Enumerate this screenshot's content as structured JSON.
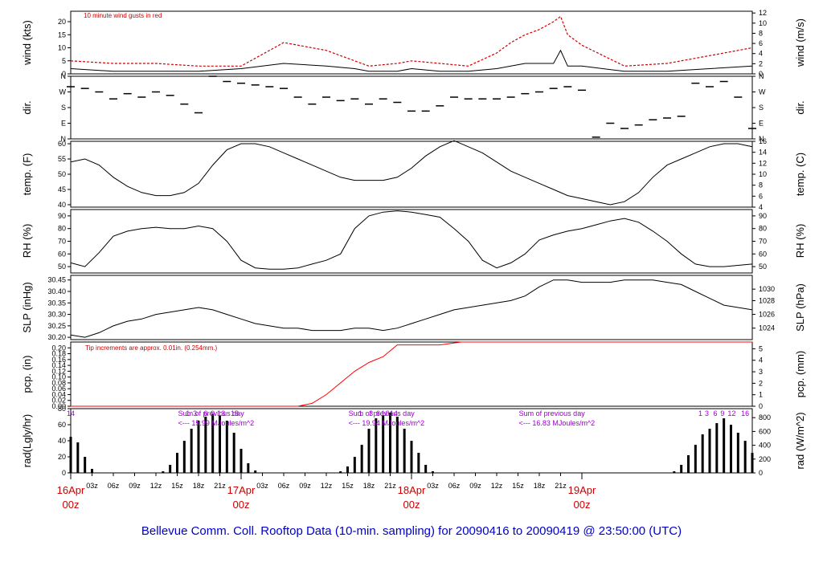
{
  "footer_title": "Bellevue Comm. Coll. Rooftop Data (10-min. sampling) for 20090416  to  20090419 @ 23:50:00  (UTC)",
  "colors": {
    "axis": "#000000",
    "gust": "#cc0000",
    "precip": "#ff0000",
    "note_red": "#cc0000",
    "note_purple": "#9900cc",
    "title_blue": "#0000cc",
    "date_red": "#cc0000"
  },
  "chart_data": [
    {
      "type": "line",
      "panel": "wind",
      "ylabel_left": "wind (kts)",
      "ylabel_right": "wind (m/s)",
      "annotation": "10  minute wind gusts in red",
      "ylim": [
        0,
        24
      ],
      "yticks_left": [
        0,
        5,
        10,
        15,
        20
      ],
      "yticks_right": [
        "0",
        "2",
        "4",
        "6",
        "8",
        "10",
        "12"
      ],
      "yticks_right_values": [
        0,
        3.89,
        7.78,
        11.66,
        15.55,
        19.44,
        23.33
      ],
      "x_hours": [
        0,
        6,
        12,
        18,
        24,
        30,
        36,
        40,
        42,
        46,
        48,
        52,
        56,
        60,
        62,
        64,
        66,
        68,
        69,
        70,
        72,
        78,
        84,
        90,
        96
      ],
      "series": [
        {
          "role": "speed",
          "values": [
            2,
            1,
            1,
            1,
            2,
            4,
            3,
            2,
            1,
            1,
            2,
            1,
            1,
            2,
            3,
            4,
            4,
            4,
            9,
            3,
            3,
            1,
            1,
            2,
            3
          ]
        },
        {
          "role": "gust",
          "values": [
            5,
            4,
            4,
            3,
            3,
            12,
            9,
            5,
            3,
            4,
            5,
            4,
            3,
            8,
            12,
            15,
            17,
            20,
            22,
            15,
            11,
            3,
            4,
            7,
            10
          ]
        }
      ]
    },
    {
      "type": "scatter",
      "panel": "dir",
      "ylabel_left": "dir.",
      "ylabel_right": "dir.",
      "yticks_left": [
        "N",
        "W",
        "S",
        "E",
        "N"
      ],
      "yticks_right": [
        "N",
        "W",
        "S",
        "E",
        "N"
      ],
      "yticks_values": [
        360,
        270,
        180,
        90,
        0
      ],
      "ylim": [
        0,
        360
      ],
      "x_hours": [
        0,
        2,
        4,
        6,
        8,
        10,
        12,
        14,
        16,
        18,
        20,
        22,
        24,
        26,
        28,
        30,
        32,
        34,
        36,
        38,
        40,
        42,
        44,
        46,
        48,
        50,
        52,
        54,
        56,
        58,
        60,
        62,
        64,
        66,
        68,
        70,
        72,
        74,
        76,
        78,
        80,
        82,
        84,
        86,
        88,
        90,
        92,
        94,
        96
      ],
      "values": [
        300,
        290,
        270,
        230,
        260,
        240,
        270,
        250,
        200,
        150,
        360,
        330,
        320,
        310,
        300,
        290,
        240,
        200,
        240,
        220,
        230,
        200,
        230,
        210,
        160,
        160,
        190,
        240,
        230,
        230,
        230,
        240,
        260,
        270,
        290,
        300,
        280,
        10,
        90,
        60,
        80,
        110,
        120,
        130,
        320,
        300,
        330,
        240,
        60
      ]
    },
    {
      "type": "line",
      "panel": "temp",
      "ylabel_left": "temp. (F)",
      "ylabel_right": "temp. (C)",
      "ylim": [
        39.2,
        60.8
      ],
      "yticks_left": [
        40,
        45,
        50,
        55,
        60
      ],
      "yticks_right": [
        "4",
        "6",
        "8",
        "10",
        "12",
        "14",
        "16"
      ],
      "yticks_right_values": [
        39.2,
        42.8,
        46.4,
        50.0,
        53.6,
        57.2,
        60.8
      ],
      "x_hours": [
        0,
        2,
        4,
        6,
        8,
        10,
        12,
        14,
        16,
        18,
        20,
        22,
        24,
        26,
        28,
        30,
        32,
        34,
        36,
        38,
        40,
        42,
        44,
        46,
        48,
        50,
        52,
        54,
        56,
        58,
        60,
        62,
        64,
        66,
        68,
        70,
        72,
        74,
        76,
        78,
        80,
        82,
        84,
        86,
        88,
        90,
        92,
        94,
        96
      ],
      "values": [
        54,
        55,
        53,
        49,
        46,
        44,
        43,
        43,
        44,
        47,
        53,
        58,
        60,
        60,
        59,
        57,
        55,
        53,
        51,
        49,
        48,
        48,
        48,
        49,
        52,
        56,
        59,
        61,
        59,
        57,
        54,
        51,
        49,
        47,
        45,
        43,
        42,
        41,
        40,
        41,
        44,
        49,
        53,
        55,
        57,
        59,
        60,
        60,
        59
      ]
    },
    {
      "type": "line",
      "panel": "rh",
      "ylabel_left": "RH (%)",
      "ylabel_right": "RH (%)",
      "ylim": [
        45,
        95
      ],
      "yticks_left": [
        50,
        60,
        70,
        80,
        90
      ],
      "yticks_right": [
        "50",
        "60",
        "70",
        "80",
        "90"
      ],
      "yticks_right_values": [
        50,
        60,
        70,
        80,
        90
      ],
      "x_hours": [
        0,
        2,
        4,
        6,
        8,
        10,
        12,
        14,
        16,
        18,
        20,
        22,
        24,
        26,
        28,
        30,
        32,
        34,
        36,
        38,
        40,
        42,
        44,
        46,
        48,
        50,
        52,
        54,
        56,
        58,
        60,
        62,
        64,
        66,
        68,
        70,
        72,
        74,
        76,
        78,
        80,
        82,
        84,
        86,
        88,
        90,
        92,
        94,
        96
      ],
      "values": [
        53,
        50,
        61,
        74,
        78,
        80,
        81,
        80,
        80,
        82,
        80,
        70,
        55,
        49,
        48,
        48,
        49,
        52,
        55,
        60,
        80,
        90,
        93,
        94,
        93,
        91,
        89,
        80,
        70,
        55,
        49,
        53,
        60,
        71,
        75,
        78,
        80,
        83,
        86,
        88,
        85,
        78,
        70,
        60,
        52,
        50,
        50,
        51,
        52
      ]
    },
    {
      "type": "line",
      "panel": "slp",
      "ylabel_left": "SLP (inHg)",
      "ylabel_right": "SLP (hPa)",
      "ylim": [
        30.19,
        30.47
      ],
      "yticks_left": [
        30.2,
        30.25,
        30.3,
        30.35,
        30.4,
        30.45
      ],
      "yticks_left_labels": [
        "30.20",
        "30.25",
        "30.30",
        "30.35",
        "30.40",
        "30.45"
      ],
      "yticks_right": [
        "1024",
        "1026",
        "1028",
        "1030"
      ],
      "yticks_right_values": [
        30.24,
        30.3,
        30.36,
        30.41
      ],
      "x_hours": [
        0,
        2,
        4,
        6,
        8,
        10,
        12,
        14,
        16,
        18,
        20,
        22,
        24,
        26,
        28,
        30,
        32,
        34,
        36,
        38,
        40,
        42,
        44,
        46,
        48,
        50,
        52,
        54,
        56,
        58,
        60,
        62,
        64,
        66,
        68,
        70,
        72,
        74,
        76,
        78,
        80,
        82,
        84,
        86,
        88,
        90,
        92,
        94,
        96
      ],
      "values": [
        30.21,
        30.2,
        30.22,
        30.25,
        30.27,
        30.28,
        30.3,
        30.31,
        30.32,
        30.33,
        30.32,
        30.3,
        30.28,
        30.26,
        30.25,
        30.24,
        30.24,
        30.23,
        30.23,
        30.23,
        30.24,
        30.24,
        30.23,
        30.24,
        30.26,
        30.28,
        30.3,
        30.32,
        30.33,
        30.34,
        30.35,
        30.36,
        30.38,
        30.42,
        30.45,
        30.45,
        30.44,
        30.44,
        30.44,
        30.45,
        30.45,
        30.45,
        30.44,
        30.43,
        30.4,
        30.37,
        30.34,
        30.33,
        30.32
      ]
    },
    {
      "type": "line",
      "panel": "precip",
      "ylabel_left": "pcp. (in)",
      "ylabel_right": "pcp. (mm)",
      "annotation": "Tip increments are approx. 0.01in. (0.254mm.)",
      "ylim": [
        0,
        0.22
      ],
      "yticks_left": [
        0,
        0.02,
        0.04,
        0.06,
        0.08,
        0.1,
        0.12,
        0.14,
        0.16,
        0.18,
        0.2
      ],
      "yticks_left_labels": [
        "0.00",
        "0.02",
        "0.04",
        "0.06",
        "0.08",
        "0.10",
        "0.12",
        "0.14",
        "0.16",
        "0.18",
        "0.20"
      ],
      "yticks_right": [
        "0",
        "1",
        "2",
        "3",
        "4",
        "5"
      ],
      "yticks_right_values": [
        0,
        0.0394,
        0.0787,
        0.1181,
        0.1575,
        0.1969
      ],
      "x_hours": [
        0,
        32,
        34,
        36,
        38,
        40,
        42,
        44,
        45,
        46,
        50,
        52,
        55,
        96
      ],
      "values": [
        0,
        0,
        0.01,
        0.04,
        0.08,
        0.12,
        0.15,
        0.17,
        0.19,
        0.21,
        0.21,
        0.21,
        0.22,
        0.22
      ]
    },
    {
      "type": "bar",
      "panel": "radiation",
      "ylabel_left": "rad(Lgly/hr)",
      "ylabel_right": "rad (W/m^2)",
      "ylim": [
        0,
        80
      ],
      "yticks_left": [
        0,
        20,
        40,
        60,
        80
      ],
      "yticks_right": [
        "0",
        "200",
        "400",
        "600",
        "800"
      ],
      "yticks_right_values": [
        0,
        17.2,
        34.4,
        51.6,
        68.8
      ],
      "x_hours": [
        0,
        1,
        2,
        3,
        13,
        14,
        15,
        16,
        17,
        18,
        19,
        20,
        21,
        22,
        23,
        24,
        25,
        26,
        38,
        39,
        40,
        41,
        42,
        43,
        44,
        45,
        46,
        47,
        48,
        49,
        50,
        51,
        62,
        63,
        64,
        65,
        66,
        67,
        68,
        69,
        70,
        71,
        72,
        73,
        74,
        75,
        76,
        77,
        78,
        79,
        80,
        81,
        82,
        83,
        84,
        85,
        86,
        87,
        88,
        89,
        90,
        91,
        92,
        93,
        94,
        95,
        96
      ],
      "values": [
        45,
        38,
        20,
        5,
        2,
        10,
        25,
        40,
        55,
        65,
        70,
        73,
        71,
        65,
        50,
        30,
        12,
        3,
        2,
        8,
        20,
        35,
        55,
        68,
        72,
        75,
        70,
        55,
        40,
        25,
        10,
        2,
        0,
        0,
        0,
        0,
        0,
        0,
        0,
        0,
        0,
        0,
        0,
        0,
        0,
        0,
        0,
        0,
        0,
        0,
        0,
        0,
        0,
        0,
        0,
        2,
        10,
        22,
        35,
        48,
        55,
        62,
        68,
        60,
        50,
        40,
        25
      ],
      "hour_marks": [
        {
          "label": "14",
          "x_hour": 0
        },
        {
          "label": "1",
          "x_hour": 16.5
        },
        {
          "label": "3",
          "x_hour": 17.5
        },
        {
          "label": "6",
          "x_hour": 19
        },
        {
          "label": "9",
          "x_hour": 20
        },
        {
          "label": "13",
          "x_hour": 21.2
        },
        {
          "label": "18",
          "x_hour": 23.1
        },
        {
          "label": "1",
          "x_hour": 40.8
        },
        {
          "label": "3",
          "x_hour": 42.3
        },
        {
          "label": "6",
          "x_hour": 43.3
        },
        {
          "label": "10",
          "x_hour": 44.3
        },
        {
          "label": "14",
          "x_hour": 45.5
        },
        {
          "label": "1",
          "x_hour": 88.7
        },
        {
          "label": "3",
          "x_hour": 89.6
        },
        {
          "label": "6",
          "x_hour": 90.8
        },
        {
          "label": "9",
          "x_hour": 91.8
        },
        {
          "label": "12",
          "x_hour": 93.1
        },
        {
          "label": "16",
          "x_hour": 95
        }
      ],
      "daily_sums": [
        {
          "line1": "Sum of previous day",
          "line2": "<--- 15.99 MJoules/m^2",
          "x_hour": 14
        },
        {
          "line1": "Sum of previous day",
          "line2": "<--- 19.94 MJoules/m^2",
          "x_hour": 38
        },
        {
          "line1": "Sum of previous day",
          "line2": "<--- 16.83 MJoules/m^2",
          "x_hour": 62
        }
      ]
    }
  ],
  "x_axis": {
    "tick_labels": [
      "03z",
      "06z",
      "09z",
      "12z",
      "15z",
      "18z",
      "21z",
      "03z",
      "06z",
      "09z",
      "12z",
      "15z",
      "18z",
      "21z",
      "03z",
      "06z",
      "09z",
      "12z",
      "15z",
      "18z",
      "21z"
    ],
    "tick_hours": [
      3,
      6,
      9,
      12,
      15,
      18,
      21,
      27,
      30,
      33,
      36,
      39,
      42,
      45,
      51,
      54,
      57,
      60,
      63,
      66,
      69
    ],
    "date_labels": [
      {
        "date": "16Apr",
        "hour": "00z",
        "x_hour": 0
      },
      {
        "date": "17Apr",
        "hour": "00z",
        "x_hour": 24
      },
      {
        "date": "18Apr",
        "hour": "00z",
        "x_hour": 48
      },
      {
        "date": "19Apr",
        "hour": "00z",
        "x_hour": 72
      }
    ]
  }
}
